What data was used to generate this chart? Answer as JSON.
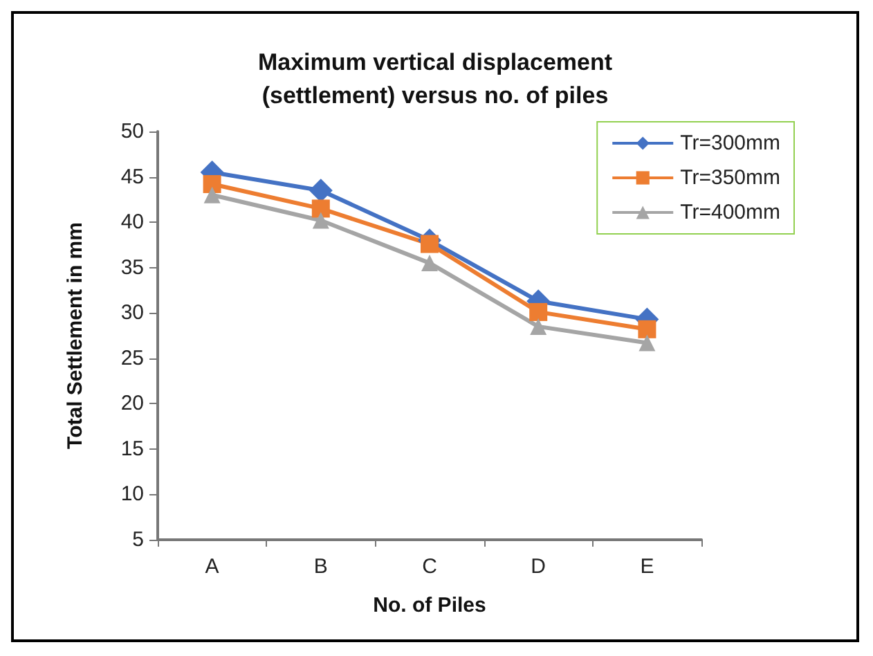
{
  "chart_data": {
    "type": "line",
    "title": "Maximum vertical displacement\n(settlement) versus no. of piles",
    "xlabel": "No. of Piles",
    "ylabel": "Total Settlement in mm",
    "categories": [
      "A",
      "B",
      "C",
      "D",
      "E"
    ],
    "series": [
      {
        "name": "Tr=300mm",
        "color": "#4472c4",
        "marker": "diamond",
        "values": [
          45.5,
          43.5,
          38,
          31.3,
          29.3
        ]
      },
      {
        "name": "Tr=350mm",
        "color": "#ed7d31",
        "marker": "square",
        "values": [
          44.2,
          41.5,
          37.6,
          30.1,
          28.2
        ]
      },
      {
        "name": "Tr=400mm",
        "color": "#a5a5a5",
        "marker": "triangle",
        "values": [
          43,
          40.2,
          35.5,
          28.5,
          26.7
        ]
      }
    ],
    "ylim": [
      5,
      50
    ],
    "yticks": [
      5,
      10,
      15,
      20,
      25,
      30,
      35,
      40,
      45,
      50
    ],
    "grid": false,
    "legend": "top right"
  }
}
